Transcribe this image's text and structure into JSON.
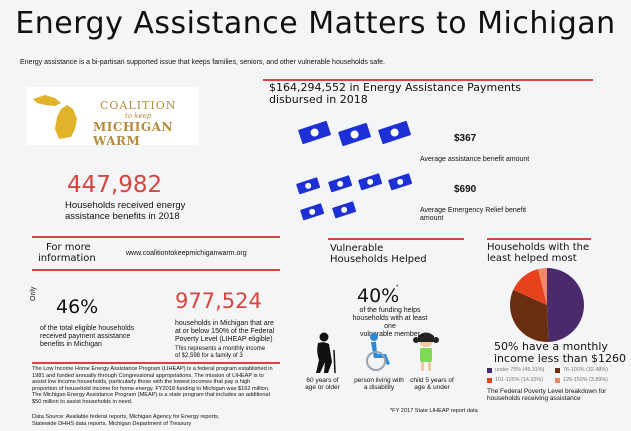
{
  "title": "Energy Assistance Matters to Michigan",
  "subtitle": "Energy assistance is a bi-partisan supported issue that keeps families, seniors, and other vulnerable households safe.",
  "logo": {
    "line1": "COALITION",
    "line2": "to keep",
    "line3": "MICHIGAN WARM"
  },
  "households": {
    "value": "447,982",
    "label_line1": "Households received energy",
    "label_line2": "assistance  benefits in 2018"
  },
  "payments": {
    "line1": "$164,294,552 in Energy Assistance Payments",
    "line2": "disbursed in 2018"
  },
  "avg_benefit": {
    "value": "$367",
    "label": "Average assistance benefit amount"
  },
  "emergency": {
    "value": "$690",
    "label_line1": "Average Emergency Relief benefit",
    "label_line2": "amount"
  },
  "more_info": {
    "line1": "For more",
    "line2": "information",
    "url": "www.coalitiontokeepmichiganwarm.org"
  },
  "eligible": {
    "only": "Only",
    "value": "46%",
    "label_line1": "of the total eligible households",
    "label_line2": "received payment assistance",
    "label_line3": "benefits in Michigan"
  },
  "poverty": {
    "value": "977,524",
    "label_line1": "households in Michigan that are",
    "label_line2": "at or below 150% of the Federal",
    "label_line3": "Poverty Level (LIHEAP eligible)",
    "note_line1": "This represents a monthly income",
    "note_line2": "of $2,598 for a family of 3"
  },
  "about_lines": [
    "The Low Income Home Energy Assistance Program (LIHEAP) is a federal program  established in",
    "1981 and funded annually through Congressional appropriations. The mission of LIHEAP is to",
    "assist low income households, particularly those with the  lowest incomes that pay a high",
    "proportion of household income for home energy. FY2018 funding to Michigan was $162 million.",
    "The Michigan Energy Assistance Program (MEAP) is a state program that includes an additional",
    "$50 million to assist households in need."
  ],
  "data_source_line1": "Data Source: Available federal reports, Michigan Agency for Energy reports,",
  "data_source_line2": "Statewide DHHS data reports, Michigan Department of Treasury",
  "vulnerable": {
    "title_line1": "Vulnerable",
    "title_line2": "Households Helped",
    "value": "40%",
    "asterisk": "*",
    "label_line1": "of the funding helps",
    "label_line2": "households with at least one",
    "label_line3": "vulnerable member",
    "groups": [
      {
        "line1": "60 years of",
        "line2": "age or older",
        "icon": "elderly-icon"
      },
      {
        "line1": "person living with",
        "line2": "a disability",
        "icon": "wheelchair-icon"
      },
      {
        "line1": "child 5 years of",
        "line2": "age & under",
        "icon": "child-icon"
      }
    ],
    "footnote": "*FY 2017 State LIHEAP report data"
  },
  "least_helped": {
    "title_line1": "Households with the",
    "title_line2": "least helped most",
    "headline_line1": "50% have a monthly",
    "headline_line2": "income less than $1260",
    "note_line1": "The Federal Poverty Level breakdown for",
    "note_line2": "households receiving assistance"
  },
  "chart_data": {
    "type": "pie",
    "categories": [
      "under 75%",
      "76-100%",
      "101-125%",
      "126-150%"
    ],
    "values": [
      49.31,
      32.48,
      14.32,
      3.89
    ],
    "legend_labels": [
      "under 75% (49.31%)",
      "76-100% (32.48%)",
      "101-125% (14.32%)",
      "126-150% (3.89%)"
    ],
    "colors": [
      "#4a2a6b",
      "#6a2e10",
      "#e8421c",
      "#ee8866"
    ],
    "legend_placement": "bottom"
  },
  "colors": {
    "accent_red": "#d6453f",
    "money_blue": "#1d2fd6"
  }
}
